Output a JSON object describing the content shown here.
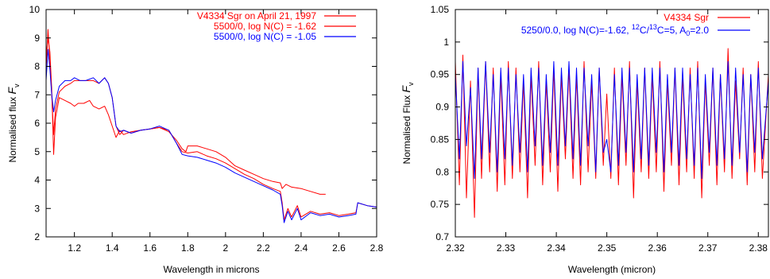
{
  "chart_data": [
    {
      "type": "line",
      "xlabel": "Wavelength in microns",
      "ylabel": "Normalised flux F_v",
      "ylabel_main": "Normalised flux ",
      "ylabel_var": "F",
      "ylabel_sub": "v",
      "xlim": [
        1.05,
        2.8
      ],
      "ylim": [
        2,
        10
      ],
      "xticks": [
        1.2,
        1.4,
        1.6,
        1.8,
        2,
        2.2,
        2.4,
        2.6,
        2.8
      ],
      "xtick_labels": [
        "1.2",
        "1.4",
        "1.6",
        "1.8",
        "2",
        "2.2",
        "2.4",
        "2.6",
        "2.8"
      ],
      "yticks": [
        2,
        3,
        4,
        5,
        6,
        7,
        8,
        9,
        10
      ],
      "ytick_labels": [
        "2",
        "3",
        "4",
        "5",
        "6",
        "7",
        "8",
        "9",
        "10"
      ],
      "grid": false,
      "legend_position": "top-right",
      "series": [
        {
          "name": "V4334 Sgr on April 21, 1997",
          "color": "#ff0000",
          "x": [
            1.05,
            1.06,
            1.07,
            1.08,
            1.09,
            1.1,
            1.12,
            1.15,
            1.18,
            1.2,
            1.22,
            1.25,
            1.28,
            1.3,
            1.33,
            1.36,
            1.38,
            1.4,
            1.42,
            1.44,
            1.46,
            1.5,
            1.55,
            1.6,
            1.65,
            1.7,
            1.74,
            1.77,
            1.79,
            1.8,
            1.85,
            1.9,
            1.95,
            2.0,
            2.05,
            2.1,
            2.15,
            2.2,
            2.25,
            2.29,
            2.3,
            2.32,
            2.35,
            2.4,
            2.45,
            2.5,
            2.53
          ],
          "y": [
            8.3,
            9.0,
            8.5,
            7.2,
            4.9,
            6.2,
            6.9,
            6.8,
            6.7,
            6.6,
            6.7,
            6.7,
            6.8,
            6.6,
            6.5,
            6.6,
            6.3,
            5.9,
            5.5,
            5.75,
            5.6,
            5.7,
            5.75,
            5.8,
            5.85,
            5.7,
            5.4,
            5.1,
            5.0,
            5.2,
            5.2,
            5.1,
            5.0,
            4.8,
            4.5,
            4.35,
            4.2,
            4.05,
            3.95,
            3.9,
            3.7,
            3.85,
            3.75,
            3.7,
            3.6,
            3.5,
            3.5
          ]
        },
        {
          "name": "5500/0, log N(C) = -1.62",
          "color": "#ff0000",
          "x": [
            1.05,
            1.06,
            1.07,
            1.08,
            1.09,
            1.1,
            1.12,
            1.15,
            1.18,
            1.2,
            1.23,
            1.26,
            1.3,
            1.33,
            1.36,
            1.38,
            1.4,
            1.42,
            1.44,
            1.46,
            1.5,
            1.55,
            1.6,
            1.65,
            1.7,
            1.74,
            1.77,
            1.8,
            1.85,
            1.9,
            1.95,
            2.0,
            2.05,
            2.1,
            2.15,
            2.2,
            2.25,
            2.29,
            2.3,
            2.31,
            2.33,
            2.35,
            2.38,
            2.4,
            2.45,
            2.5,
            2.55,
            2.6,
            2.65,
            2.69,
            2.7,
            2.75,
            2.8
          ],
          "y": [
            7.9,
            9.3,
            8.2,
            7.0,
            5.6,
            6.5,
            7.1,
            7.3,
            7.4,
            7.5,
            7.5,
            7.5,
            7.5,
            7.4,
            7.6,
            7.4,
            6.9,
            5.9,
            5.6,
            5.75,
            5.65,
            5.75,
            5.8,
            5.85,
            5.75,
            5.3,
            5.0,
            4.95,
            5.0,
            4.85,
            4.75,
            4.6,
            4.4,
            4.2,
            4.05,
            3.85,
            3.7,
            3.6,
            3.2,
            2.6,
            3.0,
            2.7,
            3.1,
            2.7,
            2.9,
            2.8,
            2.85,
            2.75,
            2.8,
            2.85,
            3.2,
            3.1,
            3.05
          ]
        },
        {
          "name": "5500/0, log N(C) = -1.05",
          "color": "#0000ff",
          "x": [
            1.05,
            1.06,
            1.07,
            1.08,
            1.09,
            1.1,
            1.12,
            1.15,
            1.18,
            1.2,
            1.23,
            1.26,
            1.3,
            1.33,
            1.36,
            1.38,
            1.4,
            1.42,
            1.44,
            1.46,
            1.5,
            1.55,
            1.6,
            1.65,
            1.7,
            1.74,
            1.77,
            1.8,
            1.85,
            1.9,
            1.95,
            2.0,
            2.05,
            2.1,
            2.15,
            2.2,
            2.25,
            2.29,
            2.3,
            2.31,
            2.33,
            2.35,
            2.38,
            2.4,
            2.45,
            2.5,
            2.55,
            2.6,
            2.65,
            2.69,
            2.7,
            2.75,
            2.8
          ],
          "y": [
            7.5,
            8.6,
            7.9,
            7.0,
            6.4,
            6.8,
            7.3,
            7.5,
            7.5,
            7.6,
            7.5,
            7.5,
            7.6,
            7.4,
            7.6,
            7.4,
            6.9,
            5.9,
            5.7,
            5.75,
            5.65,
            5.75,
            5.8,
            5.9,
            5.75,
            5.3,
            4.9,
            4.85,
            4.8,
            4.7,
            4.6,
            4.45,
            4.25,
            4.1,
            3.95,
            3.8,
            3.65,
            3.5,
            3.1,
            2.5,
            2.9,
            2.6,
            3.0,
            2.6,
            2.85,
            2.75,
            2.8,
            2.7,
            2.75,
            2.8,
            3.2,
            3.1,
            3.05
          ]
        }
      ]
    },
    {
      "type": "line",
      "xlabel": "Wavelength (micron)",
      "ylabel": "Normalised Flux F_v",
      "ylabel_main": "Normalised Flux ",
      "ylabel_var": "F",
      "ylabel_sub": "v",
      "xlim": [
        2.32,
        2.382
      ],
      "ylim": [
        0.7,
        1.05
      ],
      "xticks": [
        2.32,
        2.33,
        2.34,
        2.35,
        2.36,
        2.37,
        2.38
      ],
      "xtick_labels": [
        "2.32",
        "2.33",
        "2.34",
        "2.35",
        "2.36",
        "2.37",
        "2.38"
      ],
      "yticks": [
        0.7,
        0.75,
        0.8,
        0.85,
        0.9,
        0.95,
        1,
        1.05
      ],
      "ytick_labels": [
        "0.7",
        "0.75",
        "0.8",
        "0.85",
        "0.9",
        "0.95",
        "1",
        "1.05"
      ],
      "grid": false,
      "legend_position": "top-right",
      "series": [
        {
          "name": "V4334 Sgr",
          "color": "#ff0000",
          "x": [
            2.32,
            2.3208,
            2.3215,
            2.3222,
            2.323,
            2.3238,
            2.3245,
            2.3252,
            2.326,
            2.3268,
            2.3275,
            2.3283,
            2.329,
            2.3298,
            2.3305,
            2.3313,
            2.332,
            2.3328,
            2.3335,
            2.3343,
            2.335,
            2.3358,
            2.3365,
            2.3373,
            2.338,
            2.3388,
            2.3395,
            2.3403,
            2.341,
            2.3418,
            2.3425,
            2.3433,
            2.344,
            2.3448,
            2.3455,
            2.3463,
            2.347,
            2.3478,
            2.3485,
            2.3493,
            2.35,
            2.3508,
            2.3515,
            2.3523,
            2.353,
            2.3538,
            2.3545,
            2.3553,
            2.356,
            2.3568,
            2.3575,
            2.3583,
            2.359,
            2.3598,
            2.3605,
            2.3613,
            2.362,
            2.3628,
            2.3635,
            2.3643,
            2.365,
            2.3658,
            2.3665,
            2.3673,
            2.368,
            2.3688,
            2.3695,
            2.3703,
            2.371,
            2.3718,
            2.3725,
            2.3733,
            2.374,
            2.3748,
            2.3755,
            2.3763,
            2.377,
            2.3778,
            2.3785,
            2.3793,
            2.38,
            2.3808,
            2.382
          ],
          "y": [
            0.97,
            0.78,
            0.98,
            0.76,
            0.94,
            0.73,
            0.96,
            0.79,
            0.97,
            0.8,
            0.96,
            0.77,
            0.95,
            0.78,
            0.97,
            0.79,
            0.96,
            0.8,
            0.94,
            0.76,
            0.95,
            0.81,
            0.97,
            0.78,
            0.94,
            0.8,
            0.96,
            0.77,
            0.95,
            0.82,
            0.96,
            0.79,
            0.95,
            0.78,
            0.97,
            0.8,
            0.94,
            0.79,
            0.96,
            0.81,
            0.92,
            0.79,
            0.96,
            0.78,
            0.95,
            0.81,
            0.97,
            0.76,
            0.94,
            0.8,
            0.96,
            0.79,
            0.95,
            0.8,
            0.97,
            0.77,
            0.94,
            0.81,
            0.96,
            0.78,
            0.95,
            0.8,
            0.96,
            0.79,
            0.97,
            0.76,
            0.94,
            0.81,
            0.96,
            0.78,
            0.95,
            0.8,
            0.99,
            0.79,
            0.94,
            0.82,
            0.96,
            0.78,
            0.95,
            0.8,
            0.97,
            0.79,
            0.95
          ]
        },
        {
          "name": "5250/0.0, log N(C)=-1.62,  12C/13C=5, A0=2.0",
          "name_parts": [
            "5250/0.0, log N(C)=-1.62,  ",
            "12",
            "C/",
            "13",
            "C=5, A",
            "0",
            "=2.0"
          ],
          "color": "#0000ff",
          "x": [
            2.32,
            2.3208,
            2.3215,
            2.3222,
            2.323,
            2.3238,
            2.3245,
            2.3252,
            2.326,
            2.3268,
            2.3275,
            2.3283,
            2.329,
            2.3298,
            2.3305,
            2.3313,
            2.332,
            2.3328,
            2.3335,
            2.3343,
            2.335,
            2.3358,
            2.3365,
            2.3373,
            2.338,
            2.3388,
            2.3395,
            2.3403,
            2.341,
            2.3418,
            2.3425,
            2.3433,
            2.344,
            2.3448,
            2.3455,
            2.3463,
            2.347,
            2.3478,
            2.3485,
            2.3493,
            2.35,
            2.3508,
            2.3515,
            2.3523,
            2.353,
            2.3538,
            2.3545,
            2.3553,
            2.356,
            2.3568,
            2.3575,
            2.3583,
            2.359,
            2.3598,
            2.3605,
            2.3613,
            2.362,
            2.3628,
            2.3635,
            2.3643,
            2.365,
            2.3658,
            2.3665,
            2.3673,
            2.368,
            2.3688,
            2.3695,
            2.3703,
            2.371,
            2.3718,
            2.3725,
            2.3733,
            2.374,
            2.3748,
            2.3755,
            2.3763,
            2.377,
            2.3778,
            2.3785,
            2.3793,
            2.38,
            2.3808,
            2.382
          ],
          "y": [
            0.95,
            0.82,
            0.97,
            0.84,
            0.93,
            0.79,
            0.96,
            0.82,
            0.97,
            0.83,
            0.95,
            0.8,
            0.96,
            0.82,
            0.96,
            0.81,
            0.95,
            0.83,
            0.95,
            0.8,
            0.96,
            0.84,
            0.96,
            0.81,
            0.95,
            0.83,
            0.97,
            0.81,
            0.96,
            0.84,
            0.97,
            0.82,
            0.96,
            0.81,
            0.96,
            0.84,
            0.95,
            0.8,
            0.96,
            0.83,
            0.85,
            0.8,
            0.95,
            0.81,
            0.96,
            0.83,
            0.96,
            0.8,
            0.95,
            0.82,
            0.96,
            0.81,
            0.96,
            0.83,
            0.96,
            0.8,
            0.95,
            0.83,
            0.96,
            0.81,
            0.96,
            0.82,
            0.95,
            0.81,
            0.96,
            0.79,
            0.95,
            0.83,
            0.96,
            0.81,
            0.95,
            0.82,
            0.97,
            0.81,
            0.96,
            0.83,
            0.95,
            0.8,
            0.95,
            0.83,
            0.96,
            0.82,
            0.94
          ]
        }
      ]
    }
  ]
}
